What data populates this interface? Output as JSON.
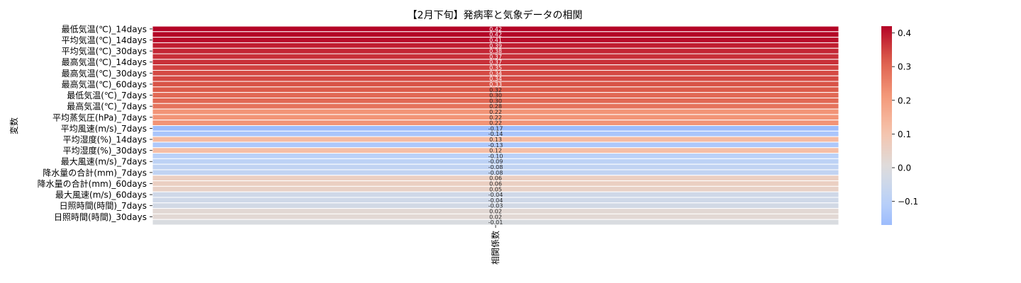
{
  "chart_data": {
    "type": "heatmap",
    "title": "【2月下旬】発病率と気象データの相関",
    "xlabel": "",
    "ylabel": "変数",
    "columns": [
      "相関係数"
    ],
    "rows": [
      "最低気温(℃)_14days",
      "",
      "平均気温(℃)_14days",
      "",
      "平均気温(℃)_30days",
      "",
      "最高気温(℃)_14days",
      "",
      "最高気温(℃)_30days",
      "",
      "最高気温(℃)_60days",
      "",
      "最低気温(℃)_7days",
      "",
      "最高気温(℃)_7days",
      "",
      "平均蒸気圧(hPa)_7days",
      "",
      "平均風速(m/s)_7days",
      "",
      "平均湿度(%)_14days",
      "",
      "平均湿度(%)_30days",
      "",
      "最大風速(m/s)_7days",
      "",
      "降水量の合計(mm)_7days",
      "",
      "降水量の合計(mm)_60days",
      "",
      "最大風速(m/s)_60days",
      "",
      "日照時間(時間)_7days",
      "",
      "日照時間(時間)_30days",
      ""
    ],
    "values": [
      0.42,
      0.42,
      0.41,
      0.39,
      0.38,
      0.37,
      0.37,
      0.35,
      0.34,
      0.34,
      0.33,
      0.32,
      0.3,
      0.3,
      0.28,
      0.22,
      0.22,
      0.22,
      -0.17,
      -0.14,
      0.13,
      -0.13,
      0.12,
      -0.1,
      -0.09,
      -0.08,
      -0.08,
      0.06,
      0.06,
      0.05,
      -0.04,
      -0.04,
      -0.03,
      0.02,
      0.02,
      -0.01
    ],
    "value_labels": [
      "0.42",
      "0.42",
      "0.41",
      "0.39",
      "0.38",
      "0.37",
      "0.37",
      "0.35",
      "0.34",
      "0.34",
      "0.33",
      "0.32",
      "0.30",
      "0.30",
      "0.28",
      "0.22",
      "0.22",
      "0.22",
      "-0.17",
      "-0.14",
      "0.13",
      "-0.13",
      "0.12",
      "-0.10",
      "-0.09",
      "-0.08",
      "-0.08",
      "0.06",
      "0.06",
      "0.05",
      "-0.04",
      "-0.04",
      "-0.03",
      "0.02",
      "0.02",
      "-0.01"
    ],
    "colormap": "coolwarm",
    "center": 0,
    "vmin": -0.17,
    "vmax": 0.42,
    "colorbar_ticks": [
      -0.1,
      0.0,
      0.1,
      0.2,
      0.3,
      0.4
    ],
    "colorbar_tick_labels": [
      "−0.1",
      "0.0",
      "0.1",
      "0.2",
      "0.3",
      "0.4"
    ]
  }
}
